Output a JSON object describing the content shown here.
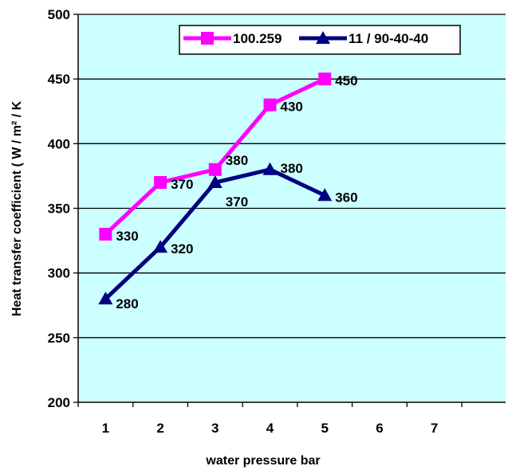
{
  "chart_data": {
    "type": "line",
    "title": "",
    "xlabel": "water pressure bar",
    "ylabel": "Heat transfer coefficient ( W / m² / K",
    "x_categories": [
      "1",
      "2",
      "3",
      "4",
      "5",
      "6",
      "7"
    ],
    "ylim": [
      200,
      500
    ],
    "y_ticks": [
      "200",
      "250",
      "300",
      "350",
      "400",
      "450",
      "500"
    ],
    "grid": "horizontal",
    "legend_position": "top-right",
    "plot_background": "#ccffff",
    "series": [
      {
        "name": "100.259",
        "color": "#ff00ff",
        "marker": "square",
        "x": [
          1,
          2,
          3,
          4,
          5
        ],
        "values": [
          330,
          370,
          380,
          430,
          450
        ],
        "labels": [
          "330",
          "370",
          "380",
          "430",
          "450"
        ]
      },
      {
        "name": "11 / 90-40-40",
        "color": "#000080",
        "marker": "triangle",
        "x": [
          1,
          2,
          3,
          4,
          5
        ],
        "values": [
          280,
          320,
          370,
          380,
          360
        ],
        "labels": [
          "280",
          "320",
          "370",
          "380",
          "360"
        ]
      }
    ]
  }
}
